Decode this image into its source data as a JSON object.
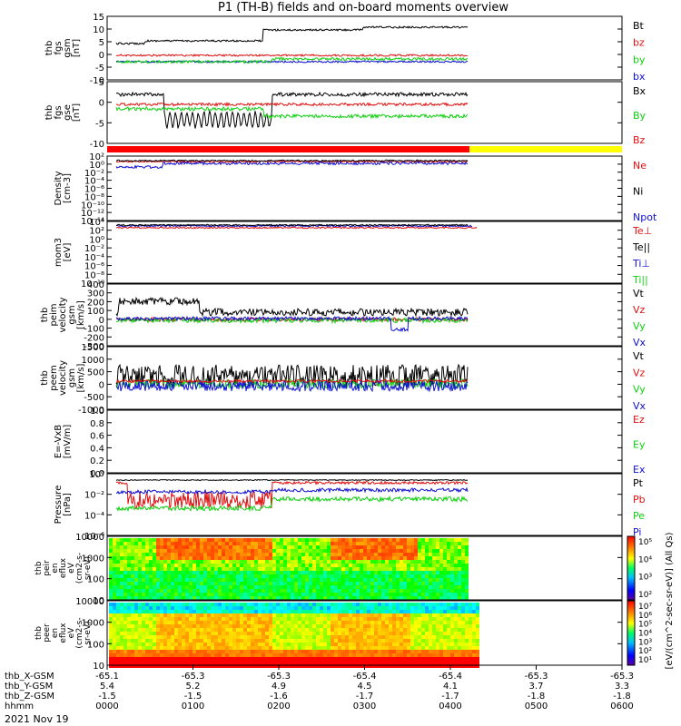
{
  "title": "P1 (TH-B) fields and on-board moments overview",
  "date_label": "2021 Nov 19",
  "colors": {
    "black": "#000000",
    "red": "#e01010",
    "green": "#10d010",
    "blue": "#1010d0",
    "bar_red": "#ff0000",
    "bar_yellow": "#ffff00",
    "grid": "#ffffff"
  },
  "chart_data": [
    {
      "type": "line",
      "name": "fgs-gsm",
      "ylabel": [
        "thb",
        "fgs",
        "gsm",
        "[nT]"
      ],
      "yticks": [
        "15",
        "10",
        "5",
        "0",
        "-5",
        "-10"
      ],
      "ylim": [
        -10,
        15
      ],
      "legend": [
        {
          "label": "Bt",
          "color": "#000000"
        },
        {
          "label": "bz",
          "color": "#e01010"
        },
        {
          "label": "by",
          "color": "#10d010"
        },
        {
          "label": "bx",
          "color": "#1010d0"
        }
      ]
    },
    {
      "type": "line",
      "name": "fgs-gse",
      "ylabel": [
        "thb",
        "fgs",
        "gse",
        "[nT]"
      ],
      "yticks": [
        "5",
        "0",
        "-5",
        "-10"
      ],
      "ylim": [
        -12,
        5
      ],
      "legend": [
        {
          "label": "Bx",
          "color": "#000000"
        },
        {
          "label": "By",
          "color": "#10d010"
        },
        {
          "label": "Bz",
          "color": "#e01010"
        }
      ]
    },
    {
      "type": "line",
      "name": "density",
      "ylabel": [
        "Density",
        "[cm-3]"
      ],
      "yticks": [
        "10²",
        "10⁰",
        "10⁻²",
        "10⁻⁴",
        "10⁻⁶",
        "10⁻⁸",
        "10⁻¹⁰",
        "10⁻¹²",
        "10⁻¹⁴"
      ],
      "scale": "log",
      "legend": [
        {
          "label": "Ne",
          "color": "#e01010"
        },
        {
          "label": "Ni",
          "color": "#000000"
        },
        {
          "label": "Npot",
          "color": "#1010d0"
        }
      ]
    },
    {
      "type": "line",
      "name": "temperature",
      "ylabel": [
        "mom3",
        "[eV]"
      ],
      "yticks": [
        "10⁴",
        "10²",
        "10⁰",
        "10⁻²",
        "10⁻⁴",
        "10⁻⁶",
        "10⁻⁸",
        "10⁻¹⁰"
      ],
      "scale": "log",
      "legend": [
        {
          "label": "Te⊥",
          "color": "#e01010"
        },
        {
          "label": "Te||",
          "color": "#000000"
        },
        {
          "label": "Ti⊥",
          "color": "#1010d0"
        },
        {
          "label": "Ti||",
          "color": "#10d010"
        }
      ]
    },
    {
      "type": "line",
      "name": "peim-velocity",
      "ylabel": [
        "thb",
        "peim",
        "velocity",
        "gsm",
        "[km/s]"
      ],
      "yticks": [
        "400",
        "300",
        "200",
        "100",
        "0",
        "-100",
        "-200",
        "-300"
      ],
      "ylim": [
        -300,
        400
      ],
      "legend": [
        {
          "label": "Vt",
          "color": "#000000"
        },
        {
          "label": "Vz",
          "color": "#e01010"
        },
        {
          "label": "Vy",
          "color": "#10d010"
        },
        {
          "label": "Vx",
          "color": "#1010d0"
        }
      ]
    },
    {
      "type": "line",
      "name": "peem-velocity",
      "ylabel": [
        "thb",
        "peem",
        "velocity",
        "gsm",
        "[km/s]"
      ],
      "yticks": [
        "1500",
        "1000",
        "500",
        "0",
        "-500",
        "-1000"
      ],
      "ylim": [
        -1000,
        1500
      ],
      "legend": [
        {
          "label": "Vt",
          "color": "#000000"
        },
        {
          "label": "Vz",
          "color": "#e01010"
        },
        {
          "label": "Vy",
          "color": "#10d010"
        },
        {
          "label": "Vx",
          "color": "#1010d0"
        }
      ]
    },
    {
      "type": "line",
      "name": "efield",
      "ylabel": [
        "E=-VxB",
        "[mV/m]"
      ],
      "yticks": [
        "1.0",
        "0.8",
        "0.6",
        "0.4",
        "0.2",
        "0.0"
      ],
      "ylim": [
        0,
        1
      ],
      "legend": [
        {
          "label": "Ez",
          "color": "#e01010"
        },
        {
          "label": "Ey",
          "color": "#10d010"
        },
        {
          "label": "Ex",
          "color": "#1010d0"
        }
      ]
    },
    {
      "type": "line",
      "name": "pressure",
      "ylabel": [
        "Pressure",
        "[nPa]"
      ],
      "yticks": [
        "10⁰",
        "10⁻²",
        "10⁻⁴",
        "10⁻⁶"
      ],
      "scale": "log",
      "legend": [
        {
          "label": "Pt",
          "color": "#000000"
        },
        {
          "label": "Pb",
          "color": "#e01010"
        },
        {
          "label": "Pe",
          "color": "#10d010"
        },
        {
          "label": "Pi",
          "color": "#1010d0"
        }
      ]
    },
    {
      "type": "heatmap",
      "name": "peir-spectrogram",
      "ylabel": [
        "thb",
        "peir",
        "en",
        "eflux",
        "eV",
        "(cm2-s-",
        "sr-eV)"
      ],
      "yticks": [
        "10000",
        "1000",
        "100",
        "10"
      ],
      "scale": "log",
      "colorbar_ticks": [
        "10⁵",
        "10⁴",
        "10³",
        "10²"
      ]
    },
    {
      "type": "heatmap",
      "name": "peer-spectrogram",
      "ylabel": [
        "thb",
        "peer",
        "en",
        "eflux",
        "eV",
        "(cm2-s-",
        "sr-eV)"
      ],
      "yticks": [
        "10000",
        "1000",
        "100",
        "10"
      ],
      "scale": "log",
      "colorbar_ticks": [
        "10⁷",
        "10⁶",
        "10⁵",
        "10⁴",
        "10³",
        "10²",
        "10¹"
      ]
    }
  ],
  "colorbar_label": "[eV/(cm^2-sec-sr-eV)] (All Qs)",
  "x_axis": {
    "row_labels": [
      "thb_X-GSM",
      "thb_Y-GSM",
      "thb_Z-GSM",
      "hhmm"
    ],
    "ticks": [
      [
        "-65.1",
        "-65.3",
        "-65.3",
        "-65.4",
        "-65.4",
        "-65.3",
        "-65.3"
      ],
      [
        "5.4",
        "5.2",
        "4.9",
        "4.5",
        "4.1",
        "3.7",
        "3.3"
      ],
      [
        "-1.5",
        "-1.5",
        "-1.6",
        "-1.7",
        "-1.7",
        "-1.8",
        "-1.8"
      ],
      [
        "0000",
        "0100",
        "0200",
        "0300",
        "0400",
        "0500",
        "0600"
      ]
    ]
  }
}
